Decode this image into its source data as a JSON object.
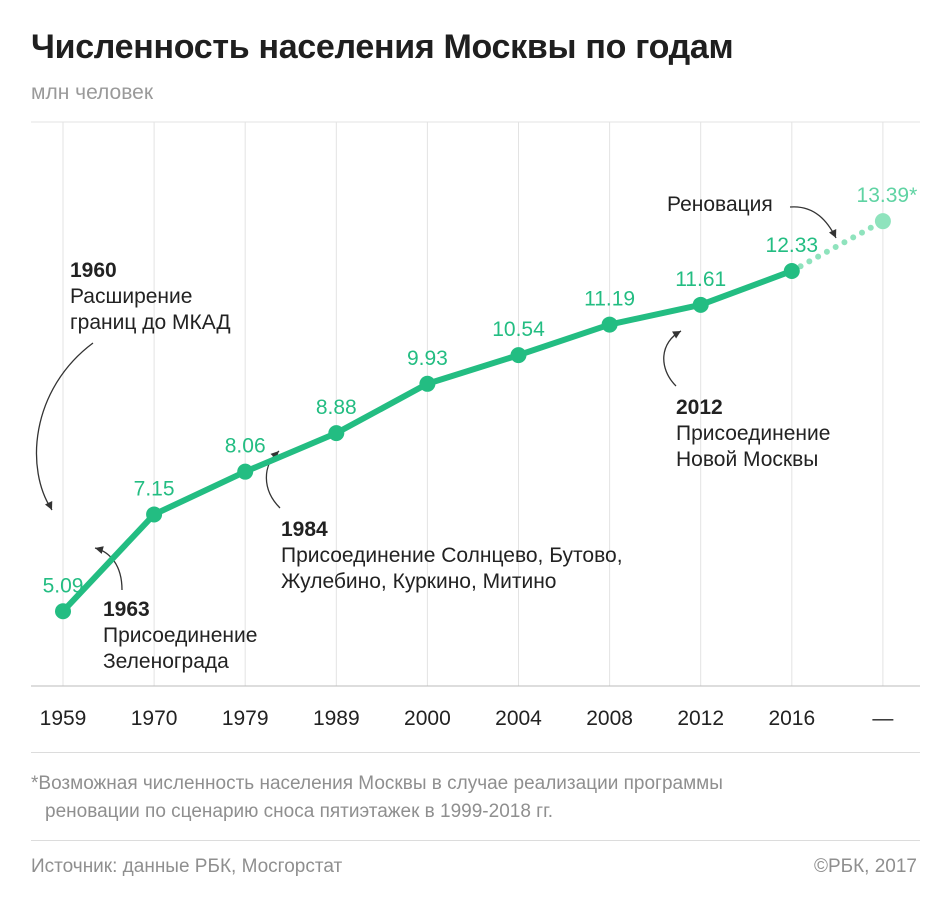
{
  "title": "Численность населения Москвы по годам",
  "subtitle": "млн человек",
  "colors": {
    "line": "#23bd82",
    "projection": "#8fe3bd",
    "label": "#23bd82",
    "projection_label": "#5fd3a3",
    "grid": "#e3e3e3",
    "axis": "#bbbbbb"
  },
  "chart_data": {
    "type": "line",
    "title": "Численность населения Москвы по годам",
    "ylabel": "млн человек",
    "categories": [
      "1959",
      "1970",
      "1979",
      "1989",
      "2000",
      "2004",
      "2008",
      "2012",
      "2016",
      "—"
    ],
    "series": [
      {
        "values": [
          5.09,
          7.15,
          8.06,
          8.88,
          9.93,
          10.54,
          11.19,
          11.61,
          12.33,
          null
        ],
        "labels": [
          "5.09",
          "7.15",
          "8.06",
          "8.88",
          "9.93",
          "10.54",
          "11.19",
          "11.61",
          "12.33",
          ""
        ]
      },
      {
        "values": [
          null,
          null,
          null,
          null,
          null,
          null,
          null,
          null,
          12.33,
          13.39
        ],
        "labels": [
          "",
          "",
          "",
          "",
          "",
          "",
          "",
          "",
          "",
          "13.39*"
        ],
        "style": "dotted"
      }
    ],
    "grid": "vertical",
    "ylim": [
      3.5,
      15.5
    ]
  },
  "annotations": [
    {
      "year": "1960",
      "text": [
        "Расширение",
        "границ до МКАД"
      ]
    },
    {
      "year": "1963",
      "text": [
        "Присоединение",
        "Зеленограда"
      ]
    },
    {
      "year": "1984",
      "text": [
        "Присоединение Солнцево, Бутово,",
        "Жулебино, Куркино, Митино"
      ]
    },
    {
      "year": "2012",
      "text": [
        "Присоединение",
        "Новой Москвы"
      ]
    },
    {
      "year": "",
      "text": [
        "Реновация"
      ]
    }
  ],
  "footnote": [
    "*Возможная численность населения Москвы в случае реализации программы",
    "реновации по сценарию сноса пятиэтажек в 1999-2018 гг."
  ],
  "source": "Источник: данные РБК, Мосгорстат",
  "copyright": "©РБК, 2017"
}
